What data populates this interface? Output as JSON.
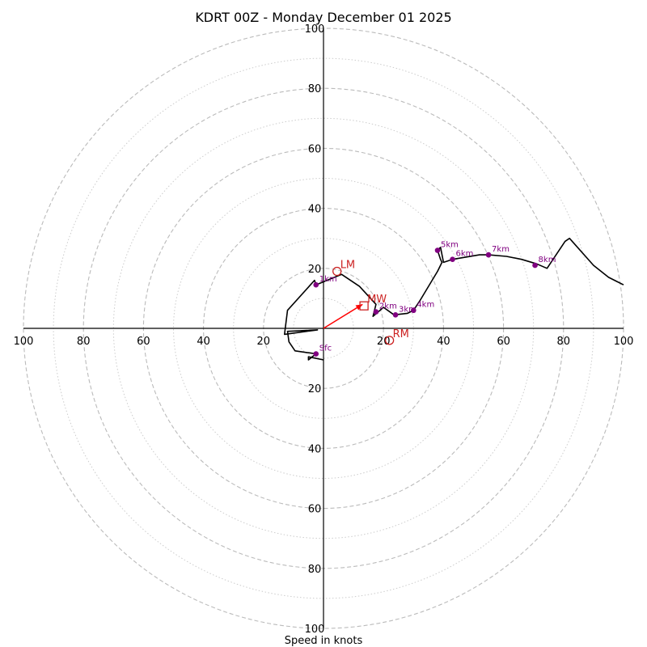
{
  "chart_data": {
    "type": "hodograph",
    "title": "KDRT 00Z - Monday December 01 2025",
    "xlabel": "Speed in knots",
    "range": 100,
    "ring_major": [
      20,
      40,
      60,
      80,
      100
    ],
    "ring_minor": [
      10,
      30,
      50,
      70,
      90
    ],
    "x_ticks": [
      {
        "value": -100,
        "label": "100"
      },
      {
        "value": -80,
        "label": "80"
      },
      {
        "value": -60,
        "label": "60"
      },
      {
        "value": -40,
        "label": "40"
      },
      {
        "value": -20,
        "label": "20"
      },
      {
        "value": 20,
        "label": "20"
      },
      {
        "value": 40,
        "label": "40"
      },
      {
        "value": 60,
        "label": "60"
      },
      {
        "value": 80,
        "label": "80"
      },
      {
        "value": 100,
        "label": "100"
      }
    ],
    "y_ticks": [
      {
        "value": 100,
        "label": "100"
      },
      {
        "value": 80,
        "label": "80"
      },
      {
        "value": 60,
        "label": "60"
      },
      {
        "value": 40,
        "label": "40"
      },
      {
        "value": 20,
        "label": "20"
      },
      {
        "value": -20,
        "label": "20"
      },
      {
        "value": -40,
        "label": "40"
      },
      {
        "value": -60,
        "label": "60"
      },
      {
        "value": -80,
        "label": "80"
      },
      {
        "value": -100,
        "label": "100"
      }
    ],
    "trace": [
      [
        0,
        -10.5
      ],
      [
        -5,
        -9.5
      ],
      [
        -5,
        -10.5
      ],
      [
        -2.5,
        -8.5
      ],
      [
        -9.5,
        -7.5
      ],
      [
        -11.5,
        -4.5
      ],
      [
        -12,
        -1
      ],
      [
        -2,
        -0.5
      ],
      [
        -13,
        -2
      ],
      [
        -12,
        6
      ],
      [
        -3,
        16
      ],
      [
        -2.5,
        14.5
      ],
      [
        6,
        18
      ],
      [
        12,
        14
      ],
      [
        17.5,
        8
      ],
      [
        16.5,
        4
      ],
      [
        20,
        7
      ],
      [
        23.5,
        4.5
      ],
      [
        28,
        5
      ],
      [
        30,
        6
      ],
      [
        32,
        9
      ],
      [
        38,
        19
      ],
      [
        39.5,
        22
      ],
      [
        39,
        23
      ],
      [
        38,
        26
      ],
      [
        39,
        27
      ],
      [
        40,
        22
      ],
      [
        43,
        23
      ],
      [
        52,
        24.5
      ],
      [
        55,
        24.5
      ],
      [
        61,
        24
      ],
      [
        66,
        23
      ],
      [
        71,
        21.5
      ],
      [
        74.5,
        20
      ],
      [
        80.5,
        29
      ],
      [
        82,
        30
      ],
      [
        90,
        21
      ],
      [
        95,
        17
      ],
      [
        100,
        14.5
      ]
    ],
    "height_markers": [
      {
        "label": "Sfc",
        "u": -2.5,
        "v": -8.5
      },
      {
        "label": "1km",
        "u": -2.5,
        "v": 14.5
      },
      {
        "label": "2km",
        "u": 17.5,
        "v": 5.5
      },
      {
        "label": "3km",
        "u": 24,
        "v": 4.5
      },
      {
        "label": "4km",
        "u": 30,
        "v": 6
      },
      {
        "label": "5km",
        "u": 38,
        "v": 26
      },
      {
        "label": "6km",
        "u": 43,
        "v": 23
      },
      {
        "label": "7km",
        "u": 55,
        "v": 24.5
      },
      {
        "label": "8km",
        "u": 70.5,
        "v": 21
      }
    ],
    "storm_motion": [
      {
        "label": "LM",
        "u": 4.5,
        "v": 19,
        "marker": "circle"
      },
      {
        "label": "MW",
        "u": 13.5,
        "v": 7.5,
        "marker": "square"
      },
      {
        "label": "RM",
        "u": 22,
        "v": -4,
        "marker": "circle"
      }
    ],
    "shear_vector": {
      "u0": 0,
      "v0": 0,
      "u1": 13,
      "v1": 8
    },
    "colors": {
      "trace": "#000000",
      "height_marker": "#800080",
      "storm_motion": "#cc2222",
      "shear_vector": "#ff0000",
      "ring": "#bbbbbb"
    }
  }
}
